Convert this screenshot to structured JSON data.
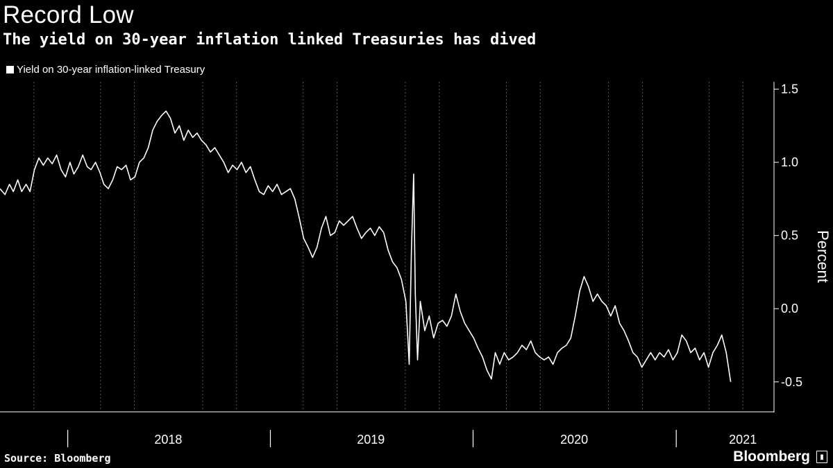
{
  "header": {
    "title": "Record Low",
    "subtitle": "The yield on 30-year inflation linked Treasuries has dived"
  },
  "footer": {
    "source": "Source: Bloomberg",
    "brand": "Bloomberg"
  },
  "colors": {
    "background": "#000000",
    "series": "#ffffff",
    "grid": "#555555"
  },
  "chart_data": {
    "type": "line",
    "title": "Record Low",
    "subtitle": "The yield on 30-year inflation linked Treasuries has dived",
    "ylabel": "Percent",
    "xlabel": "",
    "ylim": [
      -0.7,
      1.55
    ],
    "yticks": [
      1.5,
      1.0,
      0.5,
      0.0,
      -0.5
    ],
    "ytick_labels": [
      "1.5",
      "1.0",
      "0.5",
      "0.0",
      "-0.5"
    ],
    "xlim": [
      "2017-09-01",
      "2021-06-26"
    ],
    "year_labels": [
      {
        "label": "2018",
        "center": "2018-07-01"
      },
      {
        "label": "2019",
        "center": "2019-07-01"
      },
      {
        "label": "2020",
        "center": "2020-07-01"
      },
      {
        "label": "2021",
        "center": "2021-05-01"
      }
    ],
    "year_boundaries": [
      "2018-01-01",
      "2019-01-01",
      "2020-01-01",
      "2021-01-01"
    ],
    "grid": {
      "vertical": true,
      "horizontal": false,
      "vertical_lines": [
        "2017-11-01",
        "2018-03-01",
        "2018-05-01",
        "2018-09-01",
        "2018-11-01",
        "2019-03-01",
        "2019-05-01",
        "2019-09-01",
        "2019-11-01",
        "2020-03-01",
        "2020-05-01",
        "2020-09-01",
        "2020-11-01",
        "2021-03-01",
        "2021-05-01"
      ]
    },
    "legend": {
      "placement": "top-left",
      "entries": [
        "Yield on 30-year inflation-linked Treasury"
      ]
    },
    "series": [
      {
        "name": "Yield on 30-year inflation-linked Treasury",
        "points": [
          [
            "2017-09-01",
            0.82
          ],
          [
            "2017-09-10",
            0.78
          ],
          [
            "2017-09-18",
            0.85
          ],
          [
            "2017-09-25",
            0.8
          ],
          [
            "2017-10-03",
            0.88
          ],
          [
            "2017-10-10",
            0.8
          ],
          [
            "2017-10-18",
            0.85
          ],
          [
            "2017-10-25",
            0.8
          ],
          [
            "2017-11-02",
            0.95
          ],
          [
            "2017-11-10",
            1.03
          ],
          [
            "2017-11-18",
            0.98
          ],
          [
            "2017-11-26",
            1.03
          ],
          [
            "2017-12-04",
            0.99
          ],
          [
            "2017-12-12",
            1.05
          ],
          [
            "2017-12-20",
            0.95
          ],
          [
            "2017-12-28",
            0.9
          ],
          [
            "2018-01-05",
            1.0
          ],
          [
            "2018-01-12",
            0.92
          ],
          [
            "2018-01-20",
            0.97
          ],
          [
            "2018-01-28",
            1.05
          ],
          [
            "2018-02-05",
            0.97
          ],
          [
            "2018-02-12",
            0.95
          ],
          [
            "2018-02-20",
            1.0
          ],
          [
            "2018-02-28",
            0.93
          ],
          [
            "2018-03-07",
            0.85
          ],
          [
            "2018-03-15",
            0.82
          ],
          [
            "2018-03-23",
            0.88
          ],
          [
            "2018-03-31",
            0.97
          ],
          [
            "2018-04-08",
            0.95
          ],
          [
            "2018-04-16",
            0.98
          ],
          [
            "2018-04-24",
            0.88
          ],
          [
            "2018-05-02",
            0.9
          ],
          [
            "2018-05-10",
            1.0
          ],
          [
            "2018-05-18",
            1.03
          ],
          [
            "2018-05-26",
            1.1
          ],
          [
            "2018-06-03",
            1.22
          ],
          [
            "2018-06-11",
            1.28
          ],
          [
            "2018-06-19",
            1.32
          ],
          [
            "2018-06-27",
            1.35
          ],
          [
            "2018-07-05",
            1.3
          ],
          [
            "2018-07-13",
            1.2
          ],
          [
            "2018-07-21",
            1.25
          ],
          [
            "2018-07-29",
            1.15
          ],
          [
            "2018-08-06",
            1.22
          ],
          [
            "2018-08-14",
            1.17
          ],
          [
            "2018-08-22",
            1.2
          ],
          [
            "2018-08-30",
            1.15
          ],
          [
            "2018-09-07",
            1.12
          ],
          [
            "2018-09-15",
            1.07
          ],
          [
            "2018-09-23",
            1.1
          ],
          [
            "2018-10-01",
            1.05
          ],
          [
            "2018-10-09",
            1.0
          ],
          [
            "2018-10-17",
            0.93
          ],
          [
            "2018-10-25",
            0.98
          ],
          [
            "2018-11-02",
            0.95
          ],
          [
            "2018-11-10",
            1.0
          ],
          [
            "2018-11-18",
            0.93
          ],
          [
            "2018-11-26",
            0.97
          ],
          [
            "2018-12-04",
            0.88
          ],
          [
            "2018-12-12",
            0.8
          ],
          [
            "2018-12-20",
            0.78
          ],
          [
            "2018-12-28",
            0.84
          ],
          [
            "2019-01-05",
            0.8
          ],
          [
            "2019-01-13",
            0.85
          ],
          [
            "2019-01-21",
            0.78
          ],
          [
            "2019-01-29",
            0.8
          ],
          [
            "2019-02-06",
            0.82
          ],
          [
            "2019-02-14",
            0.75
          ],
          [
            "2019-02-22",
            0.62
          ],
          [
            "2019-03-02",
            0.48
          ],
          [
            "2019-03-10",
            0.42
          ],
          [
            "2019-03-18",
            0.35
          ],
          [
            "2019-03-26",
            0.42
          ],
          [
            "2019-04-03",
            0.55
          ],
          [
            "2019-04-11",
            0.63
          ],
          [
            "2019-04-19",
            0.5
          ],
          [
            "2019-04-27",
            0.52
          ],
          [
            "2019-05-05",
            0.6
          ],
          [
            "2019-05-13",
            0.57
          ],
          [
            "2019-05-21",
            0.6
          ],
          [
            "2019-05-29",
            0.63
          ],
          [
            "2019-06-06",
            0.55
          ],
          [
            "2019-06-14",
            0.48
          ],
          [
            "2019-06-22",
            0.52
          ],
          [
            "2019-06-30",
            0.55
          ],
          [
            "2019-07-08",
            0.5
          ],
          [
            "2019-07-16",
            0.56
          ],
          [
            "2019-07-24",
            0.52
          ],
          [
            "2019-08-01",
            0.4
          ],
          [
            "2019-08-09",
            0.32
          ],
          [
            "2019-08-17",
            0.28
          ],
          [
            "2019-08-25",
            0.2
          ],
          [
            "2019-09-02",
            0.05
          ],
          [
            "2019-09-08",
            -0.38
          ],
          [
            "2019-09-12",
            0.4
          ],
          [
            "2019-09-16",
            0.92
          ],
          [
            "2019-09-19",
            0.1
          ],
          [
            "2019-09-23",
            -0.35
          ],
          [
            "2019-09-28",
            0.05
          ],
          [
            "2019-10-06",
            -0.15
          ],
          [
            "2019-10-14",
            -0.05
          ],
          [
            "2019-10-22",
            -0.2
          ],
          [
            "2019-10-30",
            -0.1
          ],
          [
            "2019-11-07",
            -0.08
          ],
          [
            "2019-11-15",
            -0.12
          ],
          [
            "2019-11-23",
            -0.05
          ],
          [
            "2019-12-01",
            0.1
          ],
          [
            "2019-12-09",
            -0.02
          ],
          [
            "2019-12-17",
            -0.1
          ],
          [
            "2019-12-25",
            -0.15
          ],
          [
            "2020-01-02",
            -0.2
          ],
          [
            "2020-01-10",
            -0.27
          ],
          [
            "2020-01-18",
            -0.33
          ],
          [
            "2020-01-26",
            -0.42
          ],
          [
            "2020-02-03",
            -0.48
          ],
          [
            "2020-02-10",
            -0.3
          ],
          [
            "2020-02-18",
            -0.38
          ],
          [
            "2020-02-26",
            -0.3
          ],
          [
            "2020-03-05",
            -0.35
          ],
          [
            "2020-03-13",
            -0.33
          ],
          [
            "2020-03-21",
            -0.3
          ],
          [
            "2020-03-29",
            -0.25
          ],
          [
            "2020-04-06",
            -0.28
          ],
          [
            "2020-04-14",
            -0.22
          ],
          [
            "2020-04-22",
            -0.3
          ],
          [
            "2020-04-30",
            -0.33
          ],
          [
            "2020-05-08",
            -0.35
          ],
          [
            "2020-05-16",
            -0.33
          ],
          [
            "2020-05-24",
            -0.38
          ],
          [
            "2020-06-01",
            -0.3
          ],
          [
            "2020-06-09",
            -0.27
          ],
          [
            "2020-06-17",
            -0.25
          ],
          [
            "2020-06-25",
            -0.2
          ],
          [
            "2020-07-03",
            -0.05
          ],
          [
            "2020-07-11",
            0.12
          ],
          [
            "2020-07-19",
            0.22
          ],
          [
            "2020-07-27",
            0.15
          ],
          [
            "2020-08-04",
            0.05
          ],
          [
            "2020-08-12",
            0.1
          ],
          [
            "2020-08-20",
            0.05
          ],
          [
            "2020-08-28",
            0.02
          ],
          [
            "2020-09-05",
            -0.05
          ],
          [
            "2020-09-13",
            0.02
          ],
          [
            "2020-09-21",
            -0.1
          ],
          [
            "2020-09-29",
            -0.15
          ],
          [
            "2020-10-07",
            -0.22
          ],
          [
            "2020-10-15",
            -0.3
          ],
          [
            "2020-10-23",
            -0.33
          ],
          [
            "2020-10-31",
            -0.4
          ],
          [
            "2020-11-08",
            -0.35
          ],
          [
            "2020-11-16",
            -0.3
          ],
          [
            "2020-11-24",
            -0.35
          ],
          [
            "2020-12-02",
            -0.3
          ],
          [
            "2020-12-10",
            -0.33
          ],
          [
            "2020-12-18",
            -0.28
          ],
          [
            "2020-12-26",
            -0.35
          ],
          [
            "2021-01-03",
            -0.3
          ],
          [
            "2021-01-11",
            -0.18
          ],
          [
            "2021-01-19",
            -0.22
          ],
          [
            "2021-01-27",
            -0.3
          ],
          [
            "2021-02-04",
            -0.27
          ],
          [
            "2021-02-12",
            -0.35
          ],
          [
            "2021-02-20",
            -0.3
          ],
          [
            "2021-02-28",
            -0.4
          ],
          [
            "2021-03-08",
            -0.3
          ],
          [
            "2021-03-16",
            -0.25
          ],
          [
            "2021-03-24",
            -0.18
          ],
          [
            "2021-04-01",
            -0.3
          ],
          [
            "2021-04-09",
            -0.5
          ]
        ]
      }
    ]
  }
}
